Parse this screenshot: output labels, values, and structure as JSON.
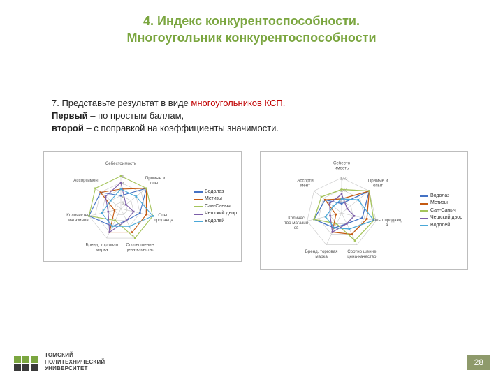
{
  "title_line1": "4. Индекс конкурентоспособности.",
  "title_line2": "Многоугольник конкурентоспособности",
  "body": {
    "p1_a": "7. Представьте результат в виде ",
    "p1_red": "многоугольников КСП.",
    "p2_bold": "Первый",
    "p2_rest": " – по простым баллам,",
    "p3_bold": "второй",
    "p3_rest": " – с поправкой на коэффициенты значимости."
  },
  "axes": [
    "Себестоимость",
    "Прямые и опыт",
    "Опыт продавца",
    "Соотношение цена-качество",
    "Бренд, торговая марка",
    "Количество магазинов",
    "Ассортимент"
  ],
  "axes2": [
    "Себесто имость",
    "Прямые и опыт",
    "Опыт продавц а",
    "Соотно шение цена-качество",
    "Бренд, торговая марка",
    "Количес тво магазин ов",
    "Ассорти мент"
  ],
  "ticks1": [
    "1",
    "2",
    "3",
    "4",
    "5"
  ],
  "ticks2": [
    "0,50",
    "1,00",
    "1,50"
  ],
  "series": [
    {
      "name": "Водолаз",
      "color": "#4472c4",
      "v1": [
        2,
        5,
        3,
        2,
        3,
        5,
        4
      ],
      "v2": [
        0.4,
        1.5,
        0.9,
        0.5,
        0.7,
        1.2,
        0.9
      ]
    },
    {
      "name": "Метизы",
      "color": "#c55a11",
      "v1": [
        3,
        5,
        4,
        4,
        4,
        1,
        4
      ],
      "v2": [
        0.6,
        1.5,
        1.1,
        1.0,
        0.9,
        0.25,
        0.9
      ]
    },
    {
      "name": "Сан-Саныч",
      "color": "#a5c45b",
      "v1": [
        5,
        5,
        5,
        5,
        2,
        5,
        5
      ],
      "v2": [
        1.0,
        1.5,
        1.4,
        1.3,
        0.5,
        1.2,
        1.1
      ]
    },
    {
      "name": "Чешский двор",
      "color": "#7c5ea9",
      "v1": [
        4,
        1,
        2,
        2,
        4,
        2,
        3
      ],
      "v2": [
        0.8,
        0.3,
        0.55,
        0.5,
        0.9,
        0.5,
        0.65
      ]
    },
    {
      "name": "Водолей",
      "color": "#4aa8d8",
      "v1": [
        3,
        3,
        5,
        3,
        3,
        3,
        2
      ],
      "v2": [
        0.6,
        0.9,
        1.4,
        0.75,
        0.7,
        0.7,
        0.45
      ]
    }
  ],
  "chart1": {
    "type": "radar",
    "max": 5,
    "rings": 5,
    "grid_color": "#c8c8c8",
    "bg": "#ffffff",
    "axis_fontsize": 6.2,
    "tick_fontsize": 5.5,
    "line_width": 1.1
  },
  "chart2": {
    "type": "radar",
    "max": 1.5,
    "rings": 3,
    "grid_color": "#c8c8c8",
    "bg": "#ffffff",
    "axis_fontsize": 6.2,
    "tick_fontsize": 5.5,
    "line_width": 1.3
  },
  "legend_prefix": "— ",
  "uni": {
    "l1": "ТОМСКИЙ",
    "l2": "ПОЛИТЕХНИЧЕСКИЙ",
    "l3": "УНИВЕРСИТЕТ"
  },
  "page": "28",
  "colors": {
    "title": "#7ba640",
    "body_red": "#c00000",
    "page_badge_bg": "#8e9a6b",
    "logo_green": "#7ba640",
    "logo_dark": "#3a3a3a"
  }
}
